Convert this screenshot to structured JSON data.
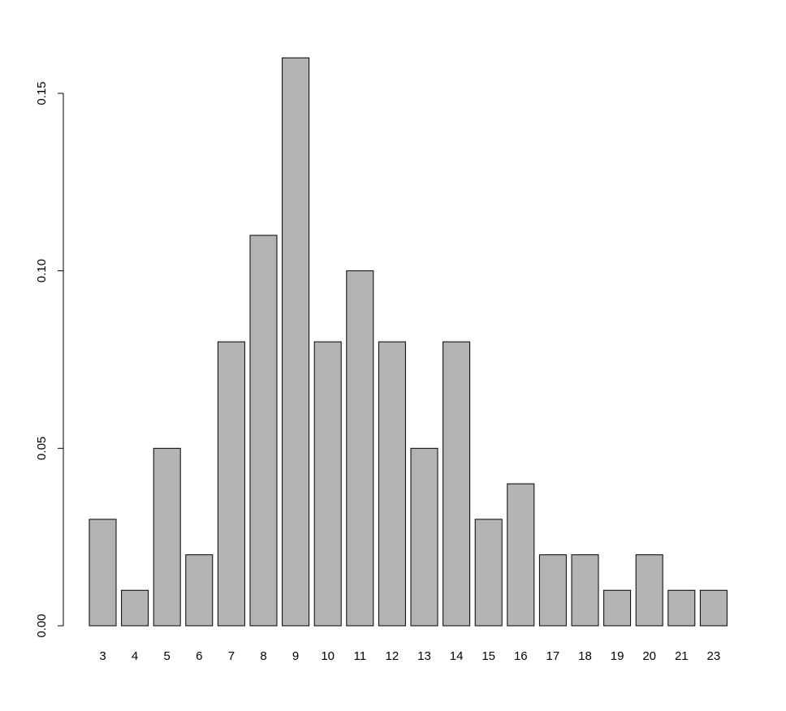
{
  "chart_data": {
    "type": "bar",
    "categories": [
      "3",
      "4",
      "5",
      "6",
      "7",
      "8",
      "9",
      "10",
      "11",
      "12",
      "13",
      "14",
      "15",
      "16",
      "17",
      "18",
      "19",
      "20",
      "21",
      "23"
    ],
    "values": [
      0.03,
      0.01,
      0.05,
      0.02,
      0.08,
      0.11,
      0.16,
      0.08,
      0.1,
      0.08,
      0.05,
      0.08,
      0.03,
      0.04,
      0.02,
      0.02,
      0.01,
      0.02,
      0.01,
      0.01
    ],
    "yticks": [
      "0.00",
      "0.05",
      "0.10",
      "0.15"
    ],
    "ylim": [
      0,
      0.16
    ],
    "title": "",
    "xlabel": "",
    "ylabel": "",
    "grid": false,
    "legend": "none",
    "bar_color": "#b3b3b3",
    "border_color": "#000000"
  }
}
